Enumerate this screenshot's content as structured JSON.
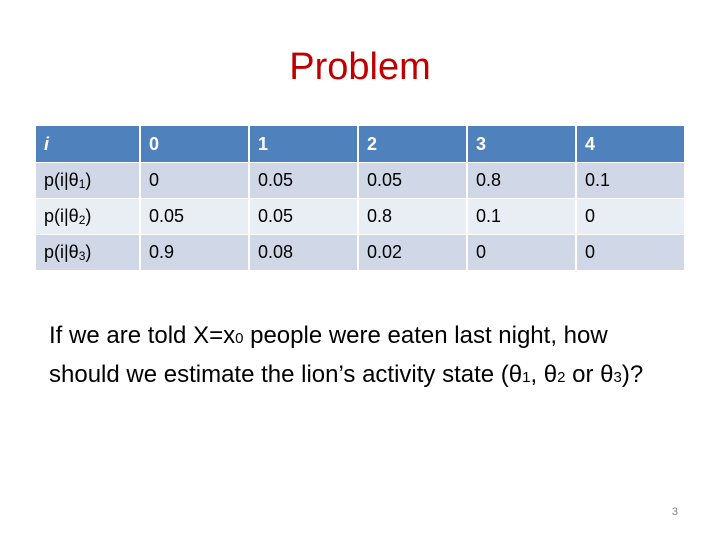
{
  "slide": {
    "title": "Problem",
    "page_number": "3"
  },
  "table": {
    "header": [
      "i",
      "0",
      "1",
      "2",
      "3",
      "4"
    ],
    "rows": [
      {
        "label_prefix": "p(i|θ",
        "label_sub": "1",
        "label_suffix": ")",
        "cells": [
          "0",
          "0.05",
          "0.05",
          "0.8",
          "0.1"
        ]
      },
      {
        "label_prefix": "p(i|θ",
        "label_sub": "2",
        "label_suffix": ")",
        "cells": [
          "0.05",
          "0.05",
          "0.8",
          "0.1",
          "0"
        ]
      },
      {
        "label_prefix": "p(i|θ",
        "label_sub": "3",
        "label_suffix": ")",
        "cells": [
          "0.9",
          "0.08",
          "0.02",
          "0",
          "0"
        ]
      }
    ]
  },
  "question": {
    "p1": "If we are told X=x",
    "sub1": "0",
    "p2": " people were eaten last night, how should we estimate the lion’s activity state (θ",
    "sub2": "1",
    "p3": ", θ",
    "sub3": "2",
    "p4": " or θ",
    "sub4": "3",
    "p5": ")?"
  }
}
